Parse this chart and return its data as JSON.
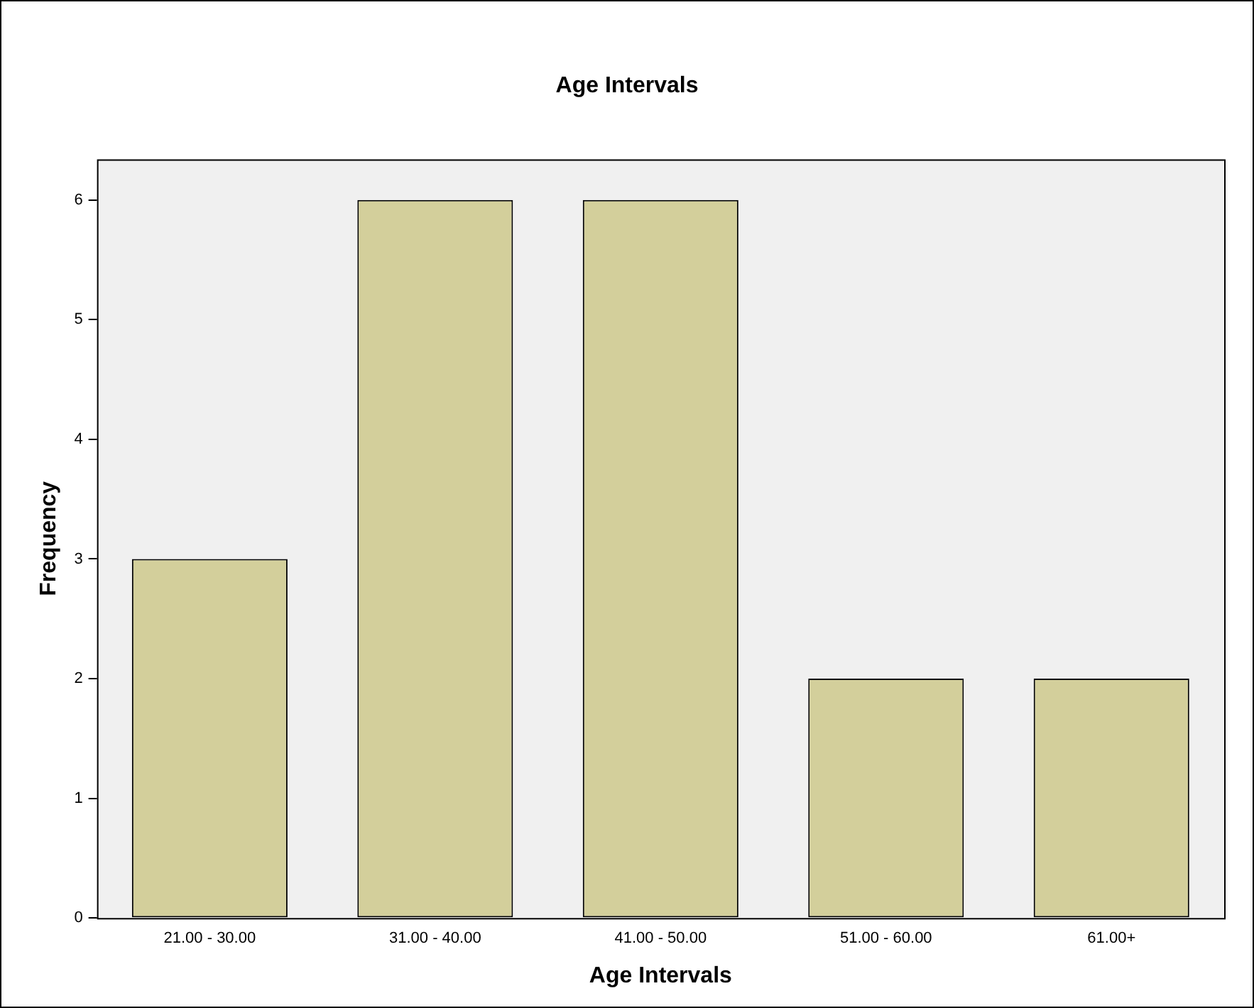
{
  "chart_data": {
    "type": "bar",
    "title": "Age Intervals",
    "xlabel": "Age Intervals",
    "ylabel": "Frequency",
    "categories": [
      "21.00 - 30.00",
      "31.00 - 40.00",
      "41.00 - 50.00",
      "51.00 - 60.00",
      "61.00+"
    ],
    "values": [
      3,
      6,
      6,
      2,
      2
    ],
    "color": "#d3cf9b",
    "ylim": [
      0,
      6.34
    ],
    "yticks": [
      0,
      1,
      2,
      3,
      4,
      5,
      6
    ],
    "grid": false,
    "legend": false
  }
}
